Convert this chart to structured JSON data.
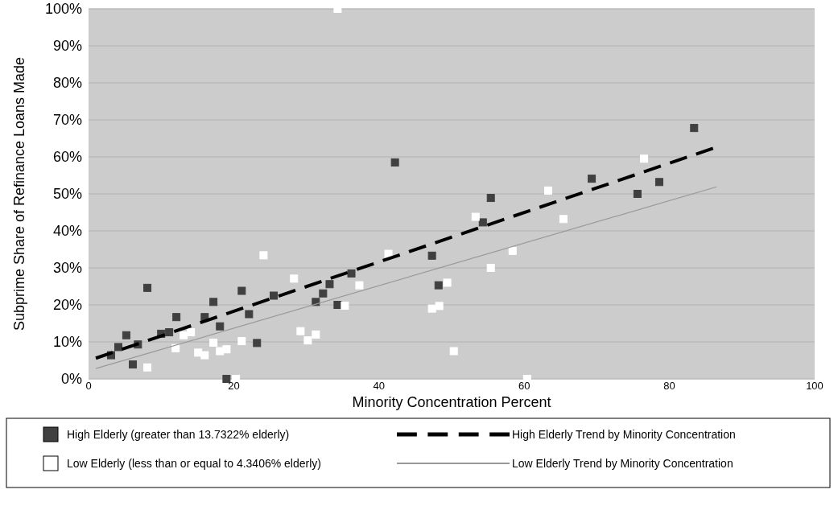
{
  "chart_data": {
    "type": "scatter",
    "xlabel": "Minority Concentration Percent",
    "ylabel": "Subprime Share of Refinance Loans Made",
    "xlim": [
      0,
      100
    ],
    "xticks": [
      0,
      20,
      40,
      60,
      80,
      100
    ],
    "ylim": [
      0,
      100
    ],
    "yticks": [
      {
        "value": 0,
        "label": "0%"
      },
      {
        "value": 10,
        "label": "10%"
      },
      {
        "value": 20,
        "label": "20%"
      },
      {
        "value": 30,
        "label": "30%"
      },
      {
        "value": 40,
        "label": "40%"
      },
      {
        "value": 50,
        "label": "50%"
      },
      {
        "value": 60,
        "label": "60%"
      },
      {
        "value": 70,
        "label": "70%"
      },
      {
        "value": 80,
        "label": "80%"
      },
      {
        "value": 90,
        "label": "90%"
      },
      {
        "value": 100,
        "label": "100%"
      }
    ],
    "grid": "y",
    "legend": "bottom",
    "marker": "square",
    "series": [
      {
        "name": "High Elderly (greater than 13.7322% elderly)",
        "color": "#404040",
        "x": [
          3.1,
          4.1,
          5.2,
          6.1,
          6.8,
          8.1,
          10.0,
          11.1,
          12.1,
          16.0,
          17.2,
          18.1,
          19.0,
          21.1,
          22.1,
          23.2,
          25.5,
          31.3,
          32.3,
          33.2,
          34.3,
          36.2,
          42.2,
          47.3,
          48.2,
          54.3,
          55.4,
          69.3,
          75.6,
          78.6,
          83.4
        ],
        "values": [
          6.4,
          8.6,
          11.8,
          3.9,
          9.3,
          24.6,
          12.2,
          12.6,
          16.7,
          16.7,
          20.8,
          14.2,
          0,
          23.8,
          17.5,
          9.7,
          22.5,
          20.8,
          23.1,
          25.6,
          20.0,
          28.5,
          58.5,
          33.3,
          25.3,
          42.3,
          48.9,
          54.1,
          50.0,
          53.2,
          67.8
        ]
      },
      {
        "name": "Low Elderly (less than or equal to 4.3406% elderly)",
        "color": "#ffffff",
        "x": [
          8.1,
          12.0,
          13.1,
          14.1,
          15.1,
          16.0,
          17.2,
          18.1,
          19.0,
          20.3,
          21.1,
          24.1,
          28.3,
          29.2,
          30.2,
          31.3,
          34.3,
          35.3,
          37.3,
          41.3,
          47.3,
          48.3,
          49.4,
          50.3,
          53.3,
          55.4,
          58.4,
          60.4,
          63.3,
          65.4,
          76.5
        ],
        "values": [
          3.1,
          8.3,
          11.8,
          12.6,
          7.1,
          6.4,
          9.8,
          7.5,
          8.0,
          0,
          10.2,
          33.4,
          27.1,
          12.9,
          10.4,
          12.0,
          100,
          19.8,
          25.3,
          33.8,
          19.0,
          19.7,
          26.0,
          7.5,
          43.8,
          30.0,
          34.6,
          0,
          50.9,
          43.2,
          59.5
        ]
      },
      {
        "name": "High Elderly Trend by Minority Concentration",
        "type": "line",
        "marker": "none",
        "line_style": "dashed",
        "color": "#000000",
        "x": [
          1,
          86
        ],
        "values": [
          5.6,
          62.3
        ]
      },
      {
        "name": "Low Elderly Trend by Minority Concentration",
        "type": "line",
        "marker": "none",
        "line_style": "solid",
        "color": "#999999",
        "x": [
          1,
          86.5
        ],
        "values": [
          2.8,
          51.9
        ]
      }
    ]
  }
}
